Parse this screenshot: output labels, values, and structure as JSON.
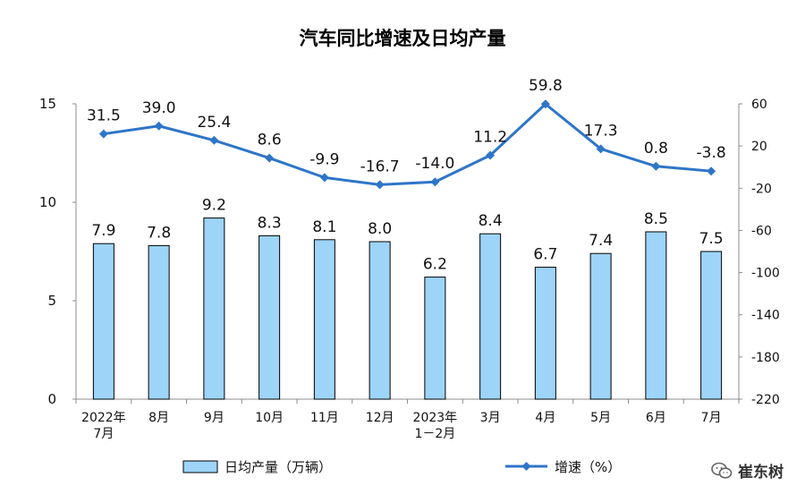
{
  "chart_data": {
    "type": "bar",
    "title": "汽车同比增速及日均产量",
    "categories": [
      [
        "2022年",
        "7月"
      ],
      [
        "8月"
      ],
      [
        "9月"
      ],
      [
        "10月"
      ],
      [
        "11月"
      ],
      [
        "12月"
      ],
      [
        "2023年",
        "1－2月"
      ],
      [
        "3月"
      ],
      [
        "4月"
      ],
      [
        "5月"
      ],
      [
        "6月"
      ],
      [
        "7月"
      ]
    ],
    "series": [
      {
        "name": "日均产量（万辆）",
        "type": "bar",
        "axis": "left",
        "color": "#9DD4F8",
        "stroke": "#000000",
        "values": [
          7.9,
          7.8,
          9.2,
          8.3,
          8.1,
          8.0,
          6.2,
          8.4,
          6.7,
          7.4,
          8.5,
          7.5
        ],
        "labels": [
          "7.9",
          "7.8",
          "9.2",
          "8.3",
          "8.1",
          "8.0",
          "6.2",
          "8.4",
          "6.7",
          "7.4",
          "8.5",
          "7.5"
        ]
      },
      {
        "name": "增速（%）",
        "type": "line",
        "axis": "right",
        "color": "#2E75C8",
        "values": [
          31.5,
          39.0,
          25.4,
          8.6,
          -9.9,
          -16.7,
          -14.0,
          11.2,
          59.8,
          17.3,
          0.8,
          -3.8
        ],
        "labels": [
          "31.5",
          "39.0",
          "25.4",
          "8.6",
          "-9.9",
          "-16.7",
          "-14.0",
          "11.2",
          "59.8",
          "17.3",
          "0.8",
          "-3.8"
        ]
      }
    ],
    "y_left": {
      "min": 0,
      "max": 15,
      "ticks": [
        "0",
        "5",
        "10",
        "15"
      ]
    },
    "y_right": {
      "min": -220,
      "max": 60,
      "ticks": [
        "60",
        "20",
        "-20",
        "-60",
        "-100",
        "-140",
        "-180",
        "-220"
      ]
    },
    "grid": false,
    "legend_position": "bottom"
  },
  "watermark": {
    "text": "崔东树",
    "icon": "wechat-icon"
  }
}
